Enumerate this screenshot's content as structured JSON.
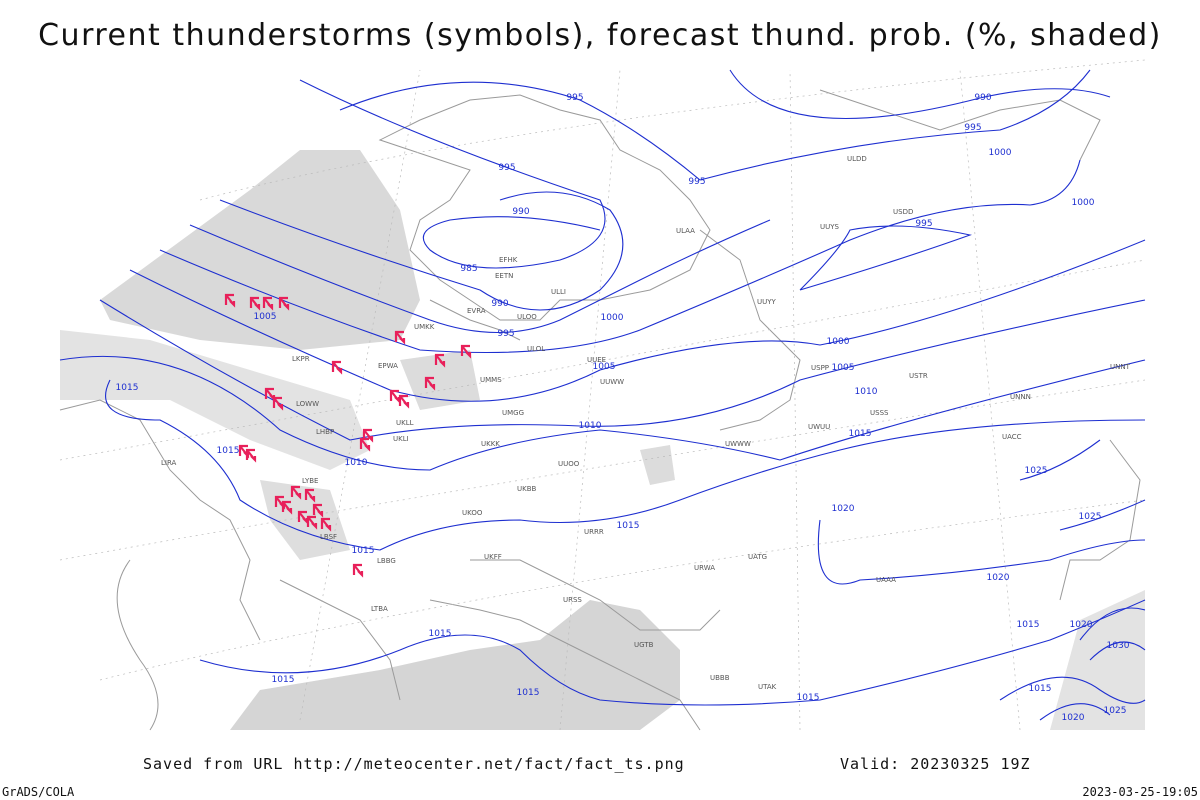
{
  "title": "Current thunderstorms (symbols), forecast thund. prob. (%, shaded)",
  "footer": {
    "source": "Saved from URL http://meteocenter.net/fact/fact_ts.png",
    "valid": "Valid: 20230325 19Z",
    "software": "GrADS/COLA",
    "timestamp": "2023-03-25-19:05"
  },
  "isobar_labels": [
    "995",
    "990",
    "995",
    "1000",
    "995",
    "995",
    "990",
    "995",
    "1000",
    "985",
    "990",
    "995",
    "1000",
    "1005",
    "1000",
    "1005",
    "1005",
    "1015",
    "1010",
    "1010",
    "1015",
    "1015",
    "1010",
    "1025",
    "1020",
    "1025",
    "1015",
    "1015",
    "1020",
    "1015",
    "1015",
    "1020",
    "1030",
    "1015",
    "1015",
    "1015",
    "1015",
    "1025",
    "1020"
  ],
  "station_labels": [
    "ULAA",
    "ULLI",
    "ULOO",
    "ULOL",
    "EVRA",
    "EETN",
    "EFHK",
    "UMKK",
    "EPWA",
    "UMMS",
    "UMGG",
    "UUEE",
    "UUWW",
    "UUOO",
    "UKKK",
    "UKLL",
    "UKLI",
    "UKBB",
    "UKOO",
    "UKFF",
    "URRR",
    "URSS",
    "URWA",
    "UATG",
    "UACC",
    "UAAA",
    "USSS",
    "UWWW",
    "UWUU",
    "USPP",
    "USTR",
    "UNNN",
    "UNNT",
    "UUYY",
    "UUYS",
    "ULDD",
    "USDD",
    "LIRA",
    "LOWW",
    "LKPR",
    "LHBP",
    "LYBE",
    "LBSF",
    "LBBG",
    "LTBA",
    "UGTB",
    "UBBB",
    "UTAK"
  ]
}
